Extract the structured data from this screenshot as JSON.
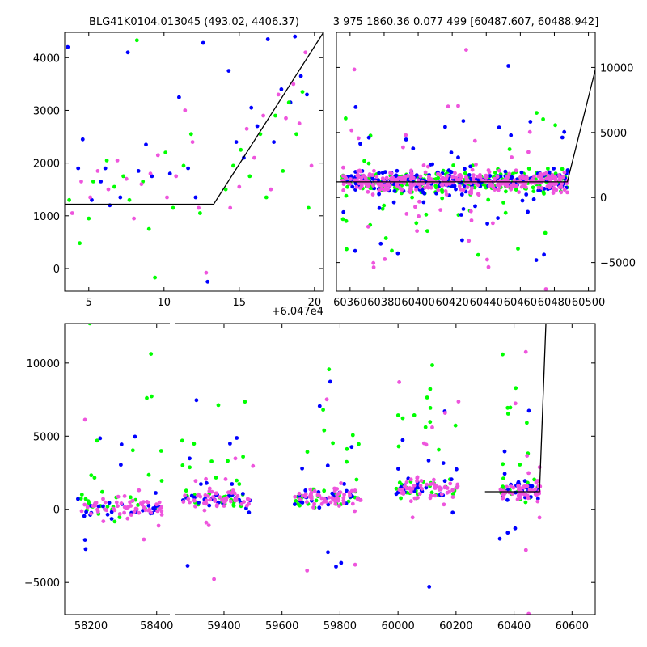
{
  "chart_data": [
    {
      "type": "scatter",
      "title": "BLG41K0104.013045 (493.02, 4406.37)",
      "offset_label": "+6.047e4",
      "xlim": [
        3.4,
        20.6
      ],
      "ylim": [
        -430,
        4480
      ],
      "xticks": [
        5,
        10,
        15,
        20
      ],
      "xtick_labels": [
        "5",
        "10",
        "15",
        "20"
      ],
      "yticks": [
        0,
        1000,
        2000,
        3000,
        4000
      ],
      "ytick_labels": [
        "0",
        "1000",
        "2000",
        "3000",
        "4000"
      ],
      "ytick_side": "left",
      "model_line": {
        "x": [
          3.4,
          13.3,
          20.6
        ],
        "y": [
          1220,
          1220,
          4480
        ]
      },
      "series": [
        {
          "color": "#0000ff",
          "x": [
            3.6,
            4.3,
            4.6,
            5.2,
            5.8,
            6.1,
            6.4,
            7.1,
            7.6,
            8.3,
            8.8,
            9.2,
            10.4,
            11.0,
            11.6,
            12.1,
            12.6,
            12.9,
            14.3,
            14.8,
            15.3,
            15.8,
            16.2,
            16.9,
            17.3,
            17.8,
            18.4,
            18.7,
            19.1,
            19.5
          ],
          "y": [
            4200,
            1900,
            2450,
            1300,
            1650,
            1900,
            1200,
            1350,
            4100,
            1850,
            2350,
            1750,
            1800,
            3250,
            1900,
            1350,
            4280,
            -250,
            3750,
            2400,
            2100,
            3050,
            2700,
            4350,
            2400,
            3400,
            3150,
            4400,
            3650,
            3300
          ]
        },
        {
          "color": "#00ff00",
          "x": [
            3.7,
            4.4,
            5.0,
            5.3,
            6.2,
            6.7,
            7.3,
            7.7,
            8.2,
            8.6,
            9.0,
            9.4,
            10.1,
            10.6,
            11.3,
            11.8,
            12.4,
            14.1,
            14.6,
            15.1,
            15.7,
            16.4,
            16.8,
            17.4,
            17.9,
            18.3,
            18.8,
            19.2,
            19.6
          ],
          "y": [
            1300,
            480,
            950,
            1650,
            2050,
            1550,
            1750,
            1300,
            4330,
            1650,
            750,
            -170,
            2200,
            1150,
            1950,
            2550,
            1050,
            1500,
            1950,
            2250,
            1750,
            2550,
            1350,
            2900,
            1850,
            3150,
            2550,
            3350,
            1150
          ]
        },
        {
          "color": "#ee55dd",
          "x": [
            3.9,
            4.5,
            5.1,
            5.6,
            6.3,
            6.9,
            7.5,
            8.0,
            8.5,
            9.1,
            9.6,
            10.2,
            10.8,
            11.4,
            11.9,
            12.3,
            12.8,
            14.4,
            15.0,
            15.5,
            16.0,
            16.6,
            17.1,
            17.6,
            18.1,
            18.6,
            19.0,
            19.4,
            19.8
          ],
          "y": [
            1050,
            1650,
            1350,
            1850,
            1500,
            2050,
            1700,
            950,
            1600,
            1800,
            2150,
            1350,
            1750,
            3000,
            2400,
            1150,
            -80,
            1150,
            1550,
            2650,
            2100,
            2900,
            1500,
            3300,
            2850,
            3500,
            2750,
            4100,
            1950
          ]
        }
      ]
    },
    {
      "type": "scatter",
      "title": "3 975 1860.36 0.077 499 [60487.607, 60488.942]",
      "xlim": [
        60352,
        60504
      ],
      "ylim": [
        -7200,
        12700
      ],
      "xticks": [
        60360,
        60380,
        60400,
        60420,
        60440,
        60460,
        60480,
        60500
      ],
      "xtick_labels": [
        "60360",
        "60380",
        "60400",
        "60420",
        "60440",
        "60460",
        "60480",
        "60500"
      ],
      "yticks": [
        -5000,
        0,
        5000,
        10000
      ],
      "ytick_labels": [
        "−5000",
        "0",
        "5000",
        "10000"
      ],
      "ytick_side": "right",
      "model_line": {
        "x": [
          60352,
          60487.6,
          60504
        ],
        "y": [
          1200,
          1200,
          9800
        ]
      },
      "band": {
        "x_range": [
          60355,
          60488
        ],
        "y_center": 1250,
        "spread": 900,
        "outlier_spread": 3500
      },
      "series": [
        {
          "color": "#00ff00",
          "n_core": 220,
          "n_outliers": 45
        },
        {
          "color": "#0000ff",
          "n_core": 220,
          "n_outliers": 45
        },
        {
          "color": "#ee55dd",
          "n_core": 320,
          "n_outliers": 40
        }
      ]
    },
    {
      "type": "scatter",
      "xlim": [
        58120,
        60680
      ],
      "ylim": [
        -7200,
        12700
      ],
      "xticks": [
        58200,
        58400,
        59400,
        59600,
        59800,
        60000,
        60200,
        60400,
        60600
      ],
      "xtick_labels": [
        "58200",
        "58400",
        "59400",
        "59600",
        "59800",
        "60000",
        "60200",
        "60400",
        "60600"
      ],
      "yticks": [
        -5000,
        0,
        5000,
        10000
      ],
      "ytick_labels": [
        "−5000",
        "0",
        "5000",
        "10000"
      ],
      "ytick_side": "left",
      "axis_break": [
        58440,
        59230
      ],
      "model_line": {
        "x": [
          60300,
          60488,
          60510
        ],
        "y": [
          1200,
          1200,
          12700
        ]
      },
      "seasons": [
        {
          "x_range": [
            58160,
            58420
          ],
          "y_center": 100,
          "spread": 700
        },
        {
          "x_range": [
            59250,
            59500
          ],
          "y_center": 700,
          "spread": 700
        },
        {
          "x_range": [
            59640,
            59880
          ],
          "y_center": 700,
          "spread": 700
        },
        {
          "x_range": [
            59990,
            60210
          ],
          "y_center": 1400,
          "spread": 800
        },
        {
          "x_range": [
            60350,
            60490
          ],
          "y_center": 1250,
          "spread": 700
        }
      ],
      "series": [
        {
          "color": "#00ff00",
          "n_core": 120,
          "n_outliers": 60
        },
        {
          "color": "#0000ff",
          "n_core": 120,
          "n_outliers": 45
        },
        {
          "color": "#ee55dd",
          "n_core": 260,
          "n_outliers": 40
        }
      ]
    }
  ]
}
